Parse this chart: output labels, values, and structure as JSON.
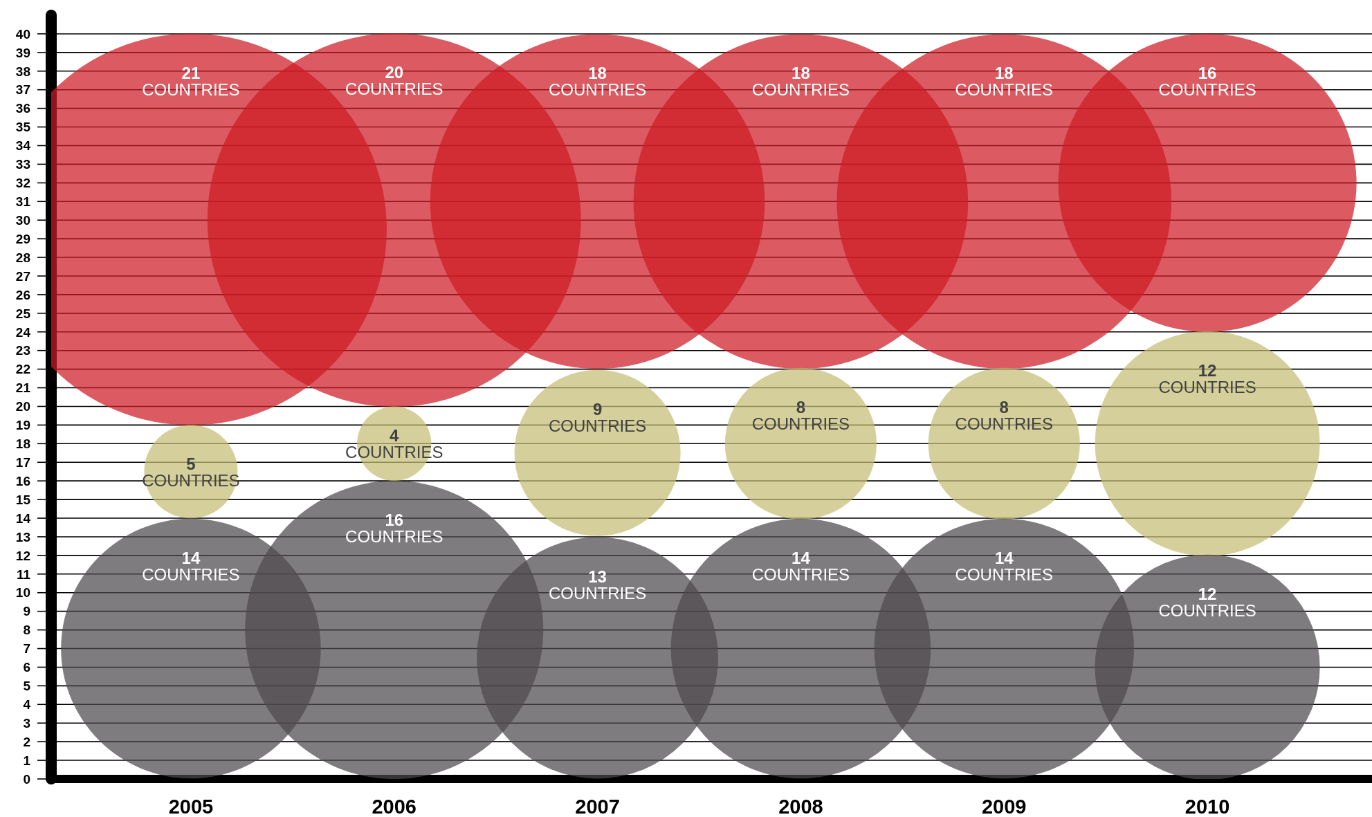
{
  "chart_data": {
    "type": "bubble",
    "categories": [
      "2005",
      "2006",
      "2007",
      "2008",
      "2009",
      "2010"
    ],
    "series": [
      {
        "color": "#ce1b24",
        "values": [
          29.5,
          30,
          31,
          31,
          31,
          32
        ],
        "sizes": [
          1,
          0.91,
          0.73,
          0.73,
          0.73,
          0.58
        ]
      },
      {
        "color": "#c5be74",
        "values": [
          16.5,
          18,
          17.5,
          18,
          18,
          18
        ],
        "sizes": [
          0.057,
          0.036,
          0.18,
          0.15,
          0.15,
          0.33
        ]
      },
      {
        "color": "#4d4a4d",
        "values": [
          7,
          8,
          6.5,
          7,
          7,
          6
        ],
        "sizes": [
          0.44,
          0.58,
          0.38,
          0.44,
          0.44,
          0.33
        ]
      }
    ],
    "annotations": [
      "21 COUNTRIES",
      "20 COUNTRIES",
      "18 COUNTRIES",
      "18 COUNTRIES",
      "18 COUNTRIES",
      "16 COUNTRIES",
      "5 COUNTRIES",
      "4 COUNTRIES",
      "9 COUNTRIES",
      "8 COUNTRIES",
      "8 COUNTRIES",
      "12 COUNTRIES",
      "14 COUNTRIES",
      "16 COUNTRIES",
      "13 COUNTRIES",
      "14 COUNTRIES",
      "14 COUNTRIES",
      "12 COUNTRIES"
    ],
    "ylim": [
      0,
      41
    ],
    "yticks": [
      0,
      1,
      2,
      3,
      4,
      5,
      6,
      7,
      8,
      9,
      10,
      11,
      12,
      13,
      14,
      15,
      16,
      17,
      18,
      19,
      20,
      21,
      22,
      23,
      24,
      25,
      26,
      27,
      28,
      29,
      30,
      31,
      32,
      33,
      34,
      35,
      36,
      37,
      38,
      39,
      40
    ],
    "grid": "y"
  }
}
